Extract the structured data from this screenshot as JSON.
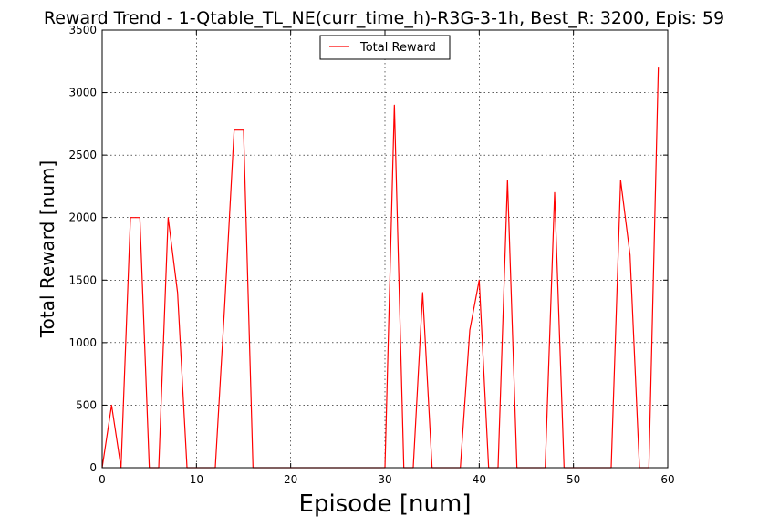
{
  "chart_data": {
    "type": "line",
    "title": "Reward Trend - 1-Qtable_TL_NE(curr_time_h)-R3G-3-1h, Best_R: 3200, Epis: 59",
    "xlabel": "Episode [num]",
    "ylabel": "Total Reward [num]",
    "xlim": [
      0,
      60
    ],
    "ylim": [
      0,
      3500
    ],
    "xticks": [
      0,
      10,
      20,
      30,
      40,
      50,
      60
    ],
    "yticks": [
      0,
      500,
      1000,
      1500,
      2000,
      2500,
      3000,
      3500
    ],
    "grid": true,
    "legend_position": "top-center",
    "series": [
      {
        "name": "Total Reward",
        "color": "#ff0000",
        "x": [
          0,
          1,
          2,
          3,
          4,
          5,
          6,
          7,
          8,
          9,
          10,
          11,
          12,
          13,
          14,
          15,
          16,
          17,
          18,
          19,
          20,
          21,
          22,
          23,
          24,
          25,
          26,
          27,
          28,
          29,
          30,
          31,
          32,
          33,
          34,
          35,
          36,
          37,
          38,
          39,
          40,
          41,
          42,
          43,
          44,
          45,
          46,
          47,
          48,
          49,
          50,
          51,
          52,
          53,
          54,
          55,
          56,
          57,
          58,
          59
        ],
        "y": [
          0,
          500,
          0,
          2000,
          2000,
          0,
          0,
          2000,
          1400,
          0,
          0,
          0,
          0,
          1300,
          2700,
          2700,
          0,
          0,
          0,
          0,
          0,
          0,
          0,
          0,
          0,
          0,
          0,
          0,
          0,
          0,
          0,
          2900,
          0,
          0,
          1400,
          0,
          0,
          0,
          0,
          1100,
          1500,
          0,
          0,
          2300,
          0,
          0,
          0,
          0,
          2200,
          0,
          0,
          0,
          0,
          0,
          0,
          2300,
          1700,
          0,
          0,
          3200
        ]
      }
    ]
  }
}
